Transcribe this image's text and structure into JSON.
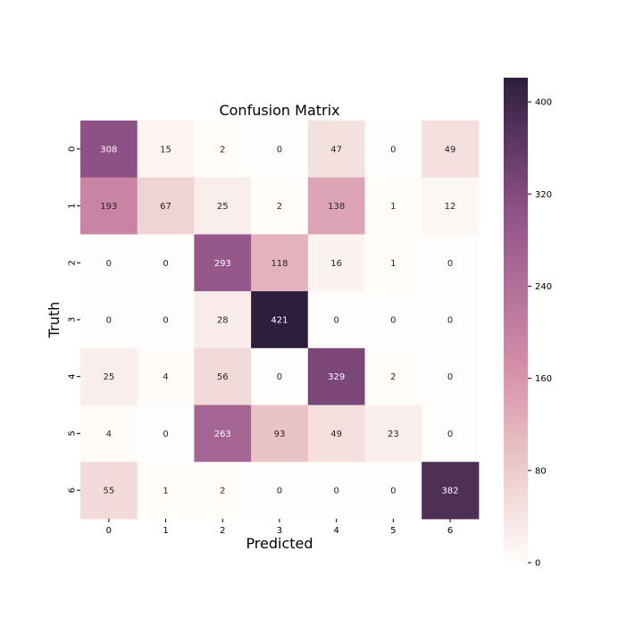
{
  "chart_data": {
    "type": "heatmap",
    "title": "Confusion Matrix",
    "xlabel": "Predicted",
    "ylabel": "Truth",
    "x_categories": [
      "0",
      "1",
      "2",
      "3",
      "4",
      "5",
      "6"
    ],
    "y_categories": [
      "0",
      "1",
      "2",
      "3",
      "4",
      "5",
      "6"
    ],
    "values": [
      [
        308,
        15,
        2,
        0,
        47,
        0,
        49
      ],
      [
        193,
        67,
        25,
        2,
        138,
        1,
        12
      ],
      [
        0,
        0,
        293,
        118,
        16,
        1,
        0
      ],
      [
        0,
        0,
        28,
        421,
        0,
        0,
        0
      ],
      [
        25,
        4,
        56,
        0,
        329,
        2,
        0
      ],
      [
        4,
        0,
        263,
        93,
        49,
        23,
        0
      ],
      [
        55,
        1,
        2,
        0,
        0,
        0,
        382
      ]
    ],
    "colorbar": {
      "min": 0,
      "max": 421,
      "ticks": [
        0,
        80,
        160,
        240,
        320,
        400
      ],
      "tick_labels": [
        "0",
        "80",
        "160",
        "240",
        "320",
        "400"
      ]
    },
    "colors": {
      "low": "#fffdfb",
      "mid1": "#ecc9c9",
      "mid2": "#d58fa9",
      "mid3": "#915389",
      "high": "#2d1e3e"
    },
    "grid": false
  }
}
